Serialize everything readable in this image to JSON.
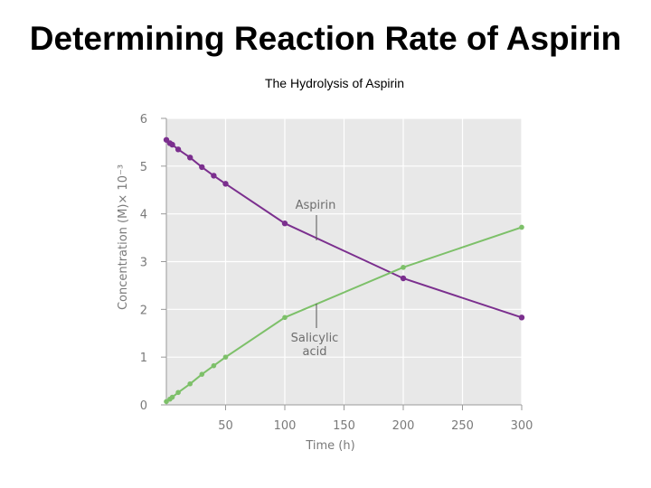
{
  "slide": {
    "title": "Determining Reaction Rate of Aspirin"
  },
  "chart_data": {
    "type": "line",
    "title": "The Hydrolysis of Aspirin",
    "xlabel": "Time (h)",
    "ylabel": "Concentration (M)× 10⁻³",
    "xlim": [
      0,
      300
    ],
    "ylim": [
      0,
      6
    ],
    "x_ticks": [
      50,
      100,
      150,
      200,
      250,
      300
    ],
    "y_ticks": [
      0,
      1,
      2,
      3,
      4,
      5,
      6
    ],
    "grid": true,
    "legend": "none",
    "series": [
      {
        "name": "Aspirin",
        "color": "#7b2f8e",
        "x": [
          0,
          3,
          5,
          10,
          20,
          30,
          40,
          50,
          100,
          200,
          300
        ],
        "y": [
          5.55,
          5.48,
          5.45,
          5.35,
          5.18,
          4.98,
          4.8,
          4.63,
          3.8,
          2.65,
          1.83
        ]
      },
      {
        "name": "Salicylic acid",
        "color": "#7dc069",
        "x": [
          0,
          3,
          5,
          10,
          20,
          30,
          40,
          50,
          100,
          200,
          300
        ],
        "y": [
          0.07,
          0.12,
          0.16,
          0.26,
          0.44,
          0.64,
          0.82,
          1.0,
          1.83,
          2.88,
          3.72
        ]
      }
    ],
    "annotations": [
      {
        "lines": [
          "Aspirin"
        ],
        "series": "Aspirin"
      },
      {
        "lines": [
          "Salicylic",
          "acid"
        ],
        "series": "Salicylic acid"
      }
    ]
  }
}
